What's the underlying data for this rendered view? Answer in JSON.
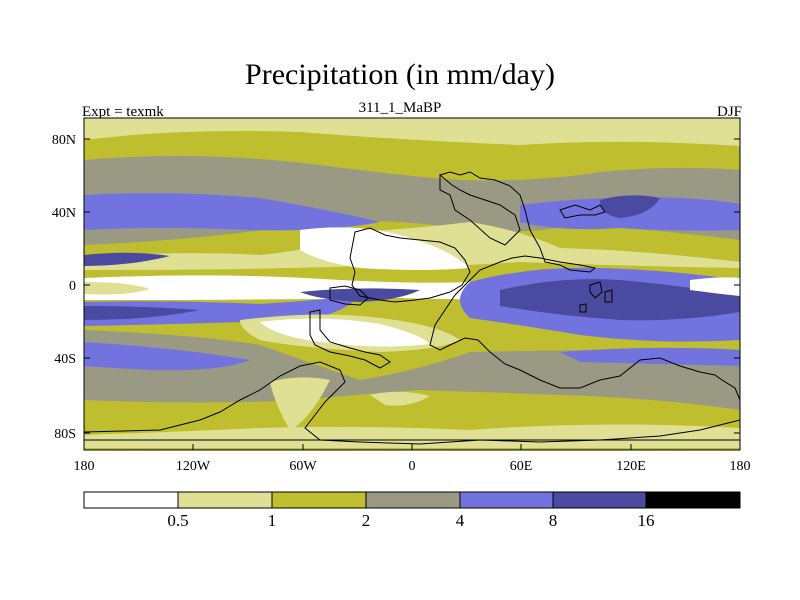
{
  "title": "Precipitation (in mm/day)",
  "left_label": "Expt = texmk",
  "center_label": "311_1_MaBP",
  "right_label": "DJF",
  "axes": {
    "y_ticks": [
      "80N",
      "40N",
      "0",
      "40S",
      "80S"
    ],
    "x_ticks": [
      "180",
      "120W",
      "60W",
      "0",
      "60E",
      "120E",
      "180"
    ]
  },
  "colorbar": {
    "levels": [
      "0.5",
      "1",
      "2",
      "4",
      "8",
      "16"
    ],
    "colors": [
      "#ffffff",
      "#e0e094",
      "#bebe2e",
      "#9a9a84",
      "#7373e0",
      "#4a4aa0",
      "#000000"
    ]
  },
  "colors": {
    "c0": "#ffffff",
    "c1": "#e0e094",
    "c2": "#bebe2e",
    "c3": "#9a9a84",
    "c4": "#7373e0",
    "c5": "#4a4aa0"
  }
}
